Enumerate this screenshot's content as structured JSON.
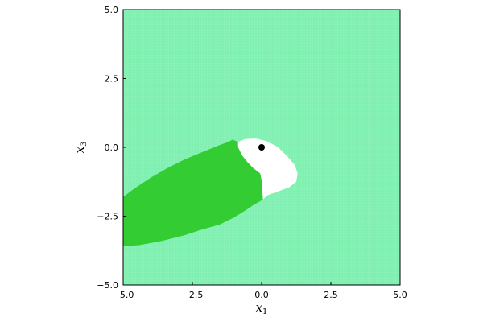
{
  "chart_data": {
    "type": "heatmap",
    "title": "",
    "xlabel": "x",
    "xlabel_sub": "1",
    "ylabel": "x",
    "ylabel_sub": "3",
    "xlim": [
      -5,
      5
    ],
    "ylim": [
      -5,
      5
    ],
    "xticks": [
      -5.0,
      -2.5,
      0.0,
      2.5,
      5.0
    ],
    "yticks": [
      -5.0,
      -2.5,
      0.0,
      2.5,
      5.0
    ],
    "xtick_labels": [
      "−5.0",
      "−2.5",
      "0.0",
      "2.5",
      "5.0"
    ],
    "ytick_labels": [
      "−5.0",
      "−2.5",
      "0.0",
      "2.5",
      "5.0"
    ],
    "grid": false,
    "legend": "none",
    "colors": {
      "background_region": "#7ff0b0",
      "grid_lines_fine": "#9af5c4",
      "dark_region": "#33cc33",
      "white_region": "#ffffff",
      "point": "#000000",
      "frame": "#000000"
    },
    "regions": [
      {
        "name": "dark-green-region",
        "polygon": [
          [
            -5.0,
            -3.6
          ],
          [
            -5.0,
            -1.8
          ],
          [
            -4.6,
            -1.5
          ],
          [
            -4.0,
            -1.1
          ],
          [
            -3.4,
            -0.75
          ],
          [
            -2.8,
            -0.45
          ],
          [
            -2.2,
            -0.2
          ],
          [
            -1.6,
            0.05
          ],
          [
            -1.2,
            0.2
          ],
          [
            -1.05,
            0.28
          ],
          [
            -0.85,
            0.2
          ],
          [
            -0.85,
            0.0
          ],
          [
            -0.7,
            -0.3
          ],
          [
            -0.5,
            -0.55
          ],
          [
            -0.3,
            -0.75
          ],
          [
            -0.05,
            -0.95
          ],
          [
            0.0,
            -1.2
          ],
          [
            0.05,
            -1.9
          ],
          [
            -0.3,
            -2.1
          ],
          [
            -0.6,
            -2.3
          ],
          [
            -1.0,
            -2.55
          ],
          [
            -1.5,
            -2.8
          ],
          [
            -2.2,
            -3.0
          ],
          [
            -2.8,
            -3.2
          ],
          [
            -3.6,
            -3.4
          ],
          [
            -4.4,
            -3.55
          ],
          [
            -5.0,
            -3.6
          ]
        ]
      },
      {
        "name": "white-region",
        "polygon": [
          [
            -0.85,
            0.0
          ],
          [
            -0.85,
            0.2
          ],
          [
            -0.6,
            0.3
          ],
          [
            -0.2,
            0.32
          ],
          [
            0.2,
            0.22
          ],
          [
            0.6,
            0.0
          ],
          [
            0.95,
            -0.35
          ],
          [
            1.2,
            -0.65
          ],
          [
            1.3,
            -0.95
          ],
          [
            1.25,
            -1.25
          ],
          [
            1.0,
            -1.45
          ],
          [
            0.6,
            -1.6
          ],
          [
            0.2,
            -1.75
          ],
          [
            0.05,
            -1.9
          ],
          [
            0.0,
            -1.2
          ],
          [
            -0.05,
            -0.95
          ],
          [
            -0.3,
            -0.75
          ],
          [
            -0.5,
            -0.55
          ],
          [
            -0.7,
            -0.3
          ],
          [
            -0.85,
            0.0
          ]
        ]
      }
    ],
    "points": [
      {
        "x": 0.0,
        "y": 0.0
      }
    ]
  }
}
